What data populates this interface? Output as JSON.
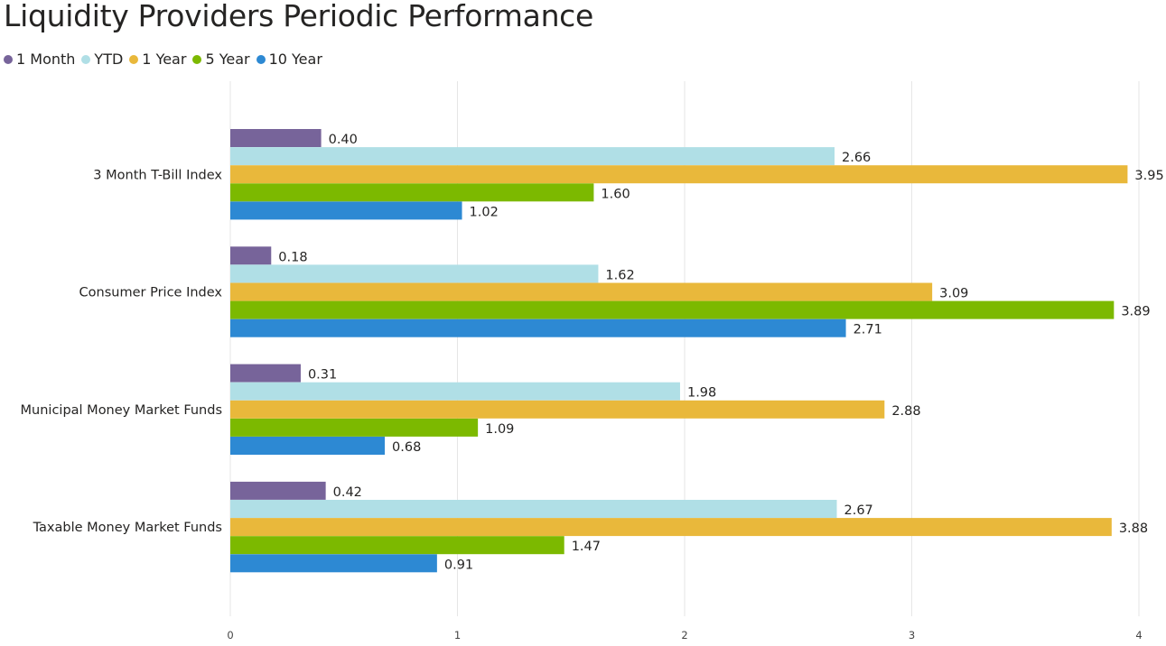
{
  "chart_data": {
    "type": "bar",
    "orientation": "horizontal",
    "title": "Liquidity Providers Periodic Performance",
    "categories": [
      "3 Month T-Bill Index",
      "Consumer Price Index",
      "Municipal Money Market Funds",
      "Taxable Money Market Funds"
    ],
    "series": [
      {
        "name": "1 Month",
        "color": "#77649a",
        "values": [
          0.4,
          0.18,
          0.31,
          0.42
        ],
        "labels": [
          "0.40",
          "0.18",
          "0.31",
          "0.42"
        ]
      },
      {
        "name": "YTD",
        "color": "#b0dfe6",
        "values": [
          2.66,
          1.62,
          1.98,
          2.67
        ],
        "labels": [
          "2.66",
          "1.62",
          "1.98",
          "2.67"
        ]
      },
      {
        "name": "1 Year",
        "color": "#e9b83b",
        "values": [
          3.95,
          3.09,
          2.88,
          3.88
        ],
        "labels": [
          "3.95",
          "3.09",
          "2.88",
          "3.88"
        ]
      },
      {
        "name": "5 Year",
        "color": "#7cb900",
        "values": [
          1.6,
          3.89,
          1.09,
          1.47
        ],
        "labels": [
          "1.60",
          "3.89",
          "1.09",
          "1.47"
        ]
      },
      {
        "name": "10 Year",
        "color": "#2d89d3",
        "values": [
          1.02,
          2.71,
          0.68,
          0.91
        ],
        "labels": [
          "1.02",
          "2.71",
          "0.68",
          "0.91"
        ]
      }
    ],
    "xlim": [
      0,
      4
    ],
    "xticks": [
      0,
      1,
      2,
      3,
      4
    ],
    "xtick_labels": [
      "0",
      "1",
      "2",
      "3",
      "4"
    ],
    "grid": true,
    "legend": "top-left",
    "gridline_color": "#e6e6e6"
  }
}
